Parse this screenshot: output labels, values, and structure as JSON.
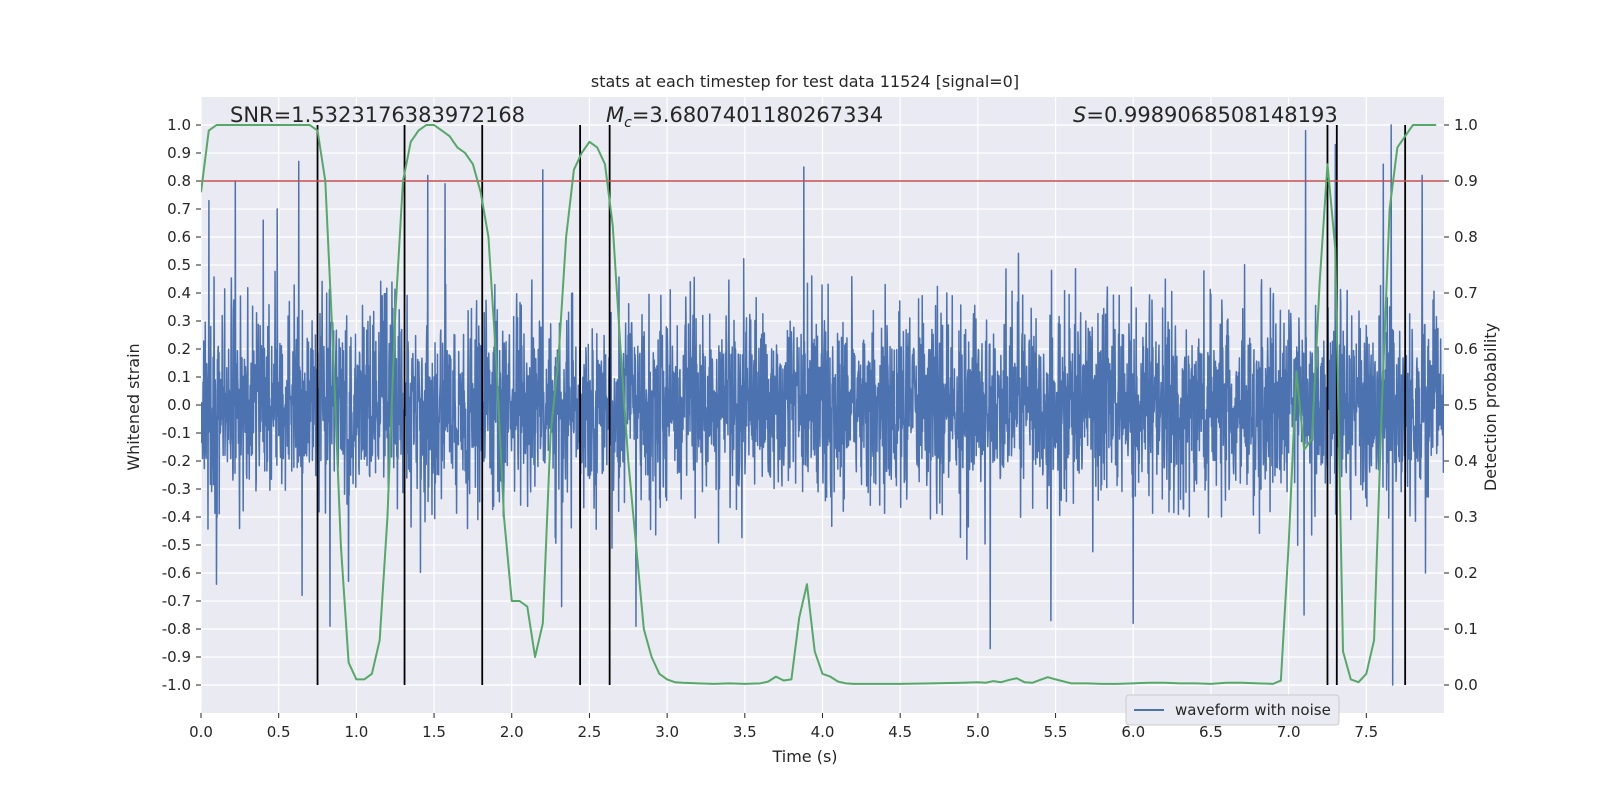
{
  "chart_data": {
    "type": "line",
    "title": "stats at each timestep for test data 11524 [signal=0]",
    "xlabel": "Time (s)",
    "ylabel": "Whitened strain",
    "y2label": "Detection probability",
    "xlim": [
      0,
      8
    ],
    "ylim": [
      -1.1,
      1.1
    ],
    "y2lim": [
      -0.05,
      1.05
    ],
    "xticks": [
      "0.0",
      "0.5",
      "1.0",
      "1.5",
      "2.0",
      "2.5",
      "3.0",
      "3.5",
      "4.0",
      "4.5",
      "5.0",
      "5.5",
      "6.0",
      "6.5",
      "7.0",
      "7.5"
    ],
    "yticks": [
      "1.0",
      "0.9",
      "0.8",
      "0.7",
      "0.6",
      "0.5",
      "0.4",
      "0.3",
      "0.2",
      "0.1",
      "0.0",
      "-0.1",
      "-0.2",
      "-0.3",
      "-0.4",
      "-0.5",
      "-0.6",
      "-0.7",
      "-0.8",
      "-0.9",
      "-1.0"
    ],
    "y2ticks": [
      "1.0",
      "0.9",
      "0.8",
      "0.7",
      "0.6",
      "0.5",
      "0.4",
      "0.3",
      "0.2",
      "0.1",
      "0.0"
    ],
    "grid": true,
    "legend": {
      "placement": "lower-right",
      "entries": [
        "waveform with noise"
      ]
    },
    "annotations": {
      "snr": "SNR=1.5323176383972168",
      "mc_symbol": "M",
      "mc_sub": "c",
      "mc_value": "=3.6807401180267334",
      "s_symbol": "S",
      "s_value": "=0.9989068508148193"
    },
    "threshold_line": {
      "axis": "right",
      "value": 0.9,
      "color": "#c44e52"
    },
    "vertical_lines_x": [
      0.75,
      1.31,
      1.81,
      2.44,
      2.63,
      7.25,
      7.31,
      7.75
    ],
    "waveform": {
      "name": "waveform with noise",
      "color": "#4c72b0",
      "samples": 4096,
      "description_of_peaks": "dense noise, typical envelope about ±0.4 to ±0.6",
      "spikes": [
        {
          "x": 0.05,
          "y": 0.73
        },
        {
          "x": 0.1,
          "y": -0.64
        },
        {
          "x": 0.22,
          "y": 0.8
        },
        {
          "x": 0.4,
          "y": 0.66
        },
        {
          "x": 0.49,
          "y": 0.7
        },
        {
          "x": 0.63,
          "y": 0.87
        },
        {
          "x": 0.65,
          "y": -0.68
        },
        {
          "x": 0.83,
          "y": -0.79
        },
        {
          "x": 0.95,
          "y": -0.63
        },
        {
          "x": 1.46,
          "y": 0.82
        },
        {
          "x": 1.57,
          "y": 0.79
        },
        {
          "x": 2.2,
          "y": 0.84
        },
        {
          "x": 2.32,
          "y": -0.72
        },
        {
          "x": 2.44,
          "y": -0.7
        },
        {
          "x": 2.8,
          "y": -0.79
        },
        {
          "x": 3.88,
          "y": 0.85
        },
        {
          "x": 5.08,
          "y": -0.87
        },
        {
          "x": 5.47,
          "y": -0.77
        },
        {
          "x": 6.0,
          "y": -0.78
        },
        {
          "x": 7.1,
          "y": -0.75
        },
        {
          "x": 7.11,
          "y": 0.98
        },
        {
          "x": 7.3,
          "y": 0.93
        },
        {
          "x": 7.61,
          "y": 0.86
        },
        {
          "x": 7.66,
          "y": 1.0
        },
        {
          "x": 7.67,
          "y": -1.0
        },
        {
          "x": 7.86,
          "y": 0.82
        },
        {
          "x": 7.88,
          "y": -0.6
        }
      ]
    },
    "probability": {
      "color": "#55a868",
      "axis": "right",
      "x": [
        0.0,
        0.05,
        0.1,
        0.2,
        0.3,
        0.4,
        0.5,
        0.6,
        0.7,
        0.75,
        0.8,
        0.85,
        0.9,
        0.95,
        1.0,
        1.05,
        1.1,
        1.15,
        1.2,
        1.25,
        1.3,
        1.35,
        1.4,
        1.45,
        1.5,
        1.55,
        1.6,
        1.65,
        1.7,
        1.75,
        1.8,
        1.85,
        1.9,
        1.95,
        2.0,
        2.05,
        2.1,
        2.15,
        2.2,
        2.25,
        2.3,
        2.35,
        2.4,
        2.45,
        2.5,
        2.55,
        2.6,
        2.65,
        2.7,
        2.75,
        2.8,
        2.85,
        2.9,
        2.95,
        3.0,
        3.05,
        3.1,
        3.2,
        3.3,
        3.4,
        3.5,
        3.6,
        3.65,
        3.7,
        3.75,
        3.8,
        3.85,
        3.9,
        3.95,
        4.0,
        4.05,
        4.1,
        4.15,
        4.2,
        4.3,
        4.5,
        4.7,
        4.9,
        5.0,
        5.05,
        5.1,
        5.15,
        5.2,
        5.25,
        5.3,
        5.35,
        5.4,
        5.45,
        5.5,
        5.6,
        5.7,
        5.8,
        5.9,
        6.0,
        6.1,
        6.2,
        6.3,
        6.4,
        6.5,
        6.6,
        6.7,
        6.8,
        6.9,
        6.95,
        7.0,
        7.05,
        7.1,
        7.15,
        7.2,
        7.25,
        7.3,
        7.35,
        7.4,
        7.45,
        7.5,
        7.55,
        7.6,
        7.65,
        7.7,
        7.75,
        7.8,
        7.85,
        7.9,
        7.95
      ],
      "y": [
        0.88,
        0.99,
        1.0,
        1.0,
        1.0,
        1.0,
        1.0,
        1.0,
        1.0,
        0.99,
        0.9,
        0.6,
        0.25,
        0.04,
        0.01,
        0.01,
        0.02,
        0.08,
        0.3,
        0.66,
        0.9,
        0.97,
        0.99,
        1.0,
        1.0,
        0.99,
        0.98,
        0.96,
        0.95,
        0.93,
        0.88,
        0.8,
        0.58,
        0.3,
        0.15,
        0.15,
        0.14,
        0.05,
        0.11,
        0.45,
        0.58,
        0.8,
        0.92,
        0.95,
        0.97,
        0.96,
        0.93,
        0.82,
        0.6,
        0.4,
        0.25,
        0.1,
        0.05,
        0.02,
        0.01,
        0.005,
        0.004,
        0.003,
        0.002,
        0.003,
        0.002,
        0.003,
        0.006,
        0.015,
        0.008,
        0.01,
        0.12,
        0.18,
        0.06,
        0.02,
        0.015,
        0.006,
        0.003,
        0.002,
        0.002,
        0.002,
        0.003,
        0.004,
        0.005,
        0.004,
        0.007,
        0.005,
        0.009,
        0.012,
        0.005,
        0.004,
        0.009,
        0.014,
        0.01,
        0.003,
        0.003,
        0.002,
        0.002,
        0.003,
        0.004,
        0.004,
        0.003,
        0.003,
        0.002,
        0.004,
        0.004,
        0.003,
        0.002,
        0.008,
        0.25,
        0.56,
        0.42,
        0.44,
        0.72,
        0.93,
        0.78,
        0.06,
        0.01,
        0.005,
        0.02,
        0.08,
        0.5,
        0.85,
        0.96,
        0.98,
        1.0,
        1.0,
        1.0,
        1.0
      ]
    }
  }
}
